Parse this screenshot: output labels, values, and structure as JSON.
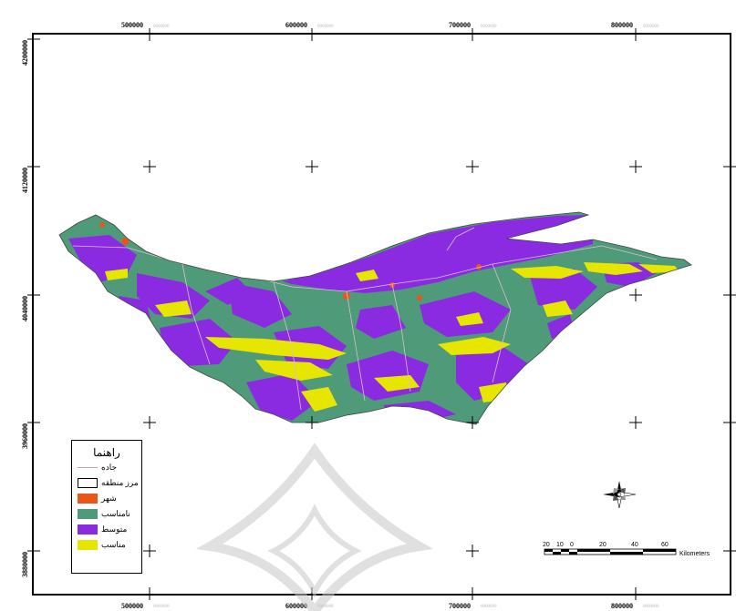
{
  "map": {
    "x_ticks": [
      "500000",
      "600000",
      "700000",
      "800000"
    ],
    "y_ticks": [
      "4200000",
      "4120000",
      "4040000",
      "3960000",
      "3880000"
    ],
    "faint_suffix": "0000000"
  },
  "legend": {
    "title": "راهنما",
    "items": [
      {
        "label": "جاده",
        "kind": "line",
        "color": "#c9a0b8"
      },
      {
        "label": "مرز منطقه",
        "kind": "box",
        "color": "#ffffff"
      },
      {
        "label": "شهر",
        "kind": "fill",
        "color": "#e8561e"
      },
      {
        "label": "نامناسب",
        "kind": "fill",
        "color": "#4f9a78"
      },
      {
        "label": "متوسط",
        "kind": "fill",
        "color": "#8a2be2"
      },
      {
        "label": "مناسب",
        "kind": "fill",
        "color": "#e6e600"
      }
    ]
  },
  "scale": {
    "labels": [
      "20",
      "10",
      "0",
      "20",
      "40",
      "60"
    ],
    "unit": "Kilometers"
  },
  "colors": {
    "green": "#4f9a78",
    "purple": "#8a2be2",
    "yellow": "#e6e600",
    "city": "#e8561e"
  }
}
